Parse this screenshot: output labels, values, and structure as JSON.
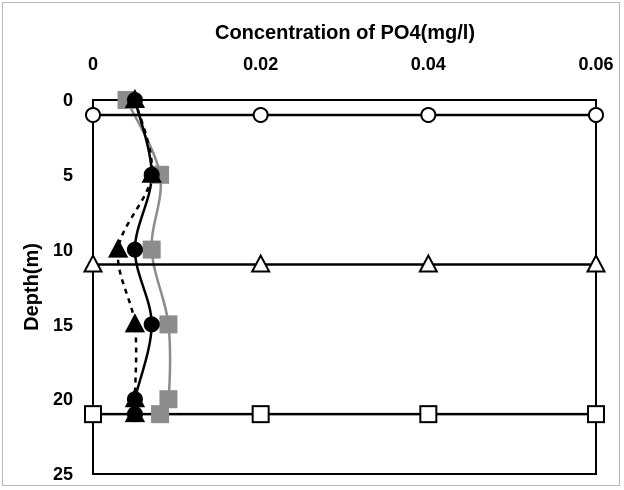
{
  "chart_data": {
    "type": "line",
    "title": "",
    "xlabel": "Concentration of PO4(mg/l)",
    "ylabel": "Depth(m)",
    "xlim": [
      0,
      0.06
    ],
    "ylim": [
      0,
      25
    ],
    "y_inverted": true,
    "x_axis_position": "top",
    "x_ticks": [
      "0",
      "0.02",
      "0.04",
      "0.06"
    ],
    "y_ticks": [
      "0",
      "5",
      "10",
      "15",
      "20",
      "25"
    ],
    "x_tick_values": [
      0,
      0.02,
      0.04,
      0.06
    ],
    "y_tick_values": [
      0,
      5,
      10,
      15,
      20,
      25
    ],
    "grid": false,
    "legend": "none",
    "series": [
      {
        "marker": "square",
        "fill": "#8c8c8c",
        "line": "#8c8c8c",
        "dash": false,
        "points": [
          [
            0.004,
            0
          ],
          [
            0.008,
            5
          ],
          [
            0.007,
            10
          ],
          [
            0.009,
            15
          ],
          [
            0.009,
            20
          ],
          [
            0.008,
            21
          ]
        ]
      },
      {
        "marker": "circle",
        "fill": "#000000",
        "line": "#000000",
        "dash": false,
        "points": [
          [
            0.005,
            0
          ],
          [
            0.007,
            5
          ],
          [
            0.005,
            10
          ],
          [
            0.007,
            15
          ],
          [
            0.005,
            20
          ],
          [
            0.005,
            21
          ]
        ]
      },
      {
        "marker": "triangle",
        "fill": "#000000",
        "line": "#000000",
        "dash": true,
        "points": [
          [
            0.005,
            0
          ],
          [
            0.007,
            5
          ],
          [
            0.003,
            10
          ],
          [
            0.005,
            15
          ],
          [
            0.005,
            20
          ],
          [
            0.005,
            21
          ]
        ]
      },
      {
        "marker": "circle-open",
        "fill": "#ffffff",
        "line": "#000000",
        "dash": false,
        "points": [
          [
            0,
            1
          ],
          [
            0.02,
            1
          ],
          [
            0.04,
            1
          ],
          [
            0.06,
            1
          ]
        ]
      },
      {
        "marker": "triangle-open",
        "fill": "#ffffff",
        "line": "#000000",
        "dash": false,
        "points": [
          [
            0,
            11
          ],
          [
            0.02,
            11
          ],
          [
            0.04,
            11
          ],
          [
            0.06,
            11
          ]
        ]
      },
      {
        "marker": "square-open",
        "fill": "#ffffff",
        "line": "#000000",
        "dash": false,
        "points": [
          [
            0,
            21
          ],
          [
            0.02,
            21
          ],
          [
            0.04,
            21
          ],
          [
            0.06,
            21
          ]
        ]
      }
    ]
  }
}
